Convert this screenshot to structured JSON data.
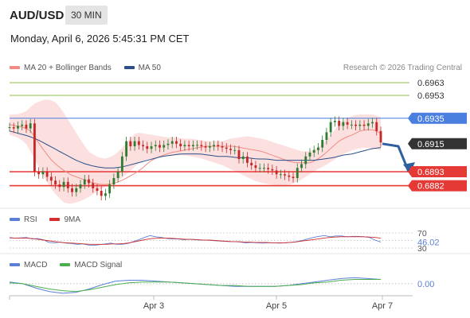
{
  "header": {
    "pair": "AUD/USD",
    "timeframe": "30 MIN",
    "datetime": "Monday, April 6, 2026 5:45:31 PM CET"
  },
  "legends": {
    "price": [
      {
        "label": "MA 20 + Bollinger Bands",
        "color": "#f28b82"
      },
      {
        "label": "MA 50",
        "color": "#2b4f86"
      }
    ],
    "rsi": [
      {
        "label": "RSI",
        "color": "#5b7fd6"
      },
      {
        "label": "9MA",
        "color": "#d32f2f"
      }
    ],
    "macd": [
      {
        "label": "MACD",
        "color": "#5b7fd6"
      },
      {
        "label": "MACD Signal",
        "color": "#4caf50"
      }
    ]
  },
  "copyright": "Research © 2026 Trading Central",
  "colors": {
    "up": "#2e7d32",
    "down": "#c62828",
    "resistance": "#8bc34a",
    "pivot": "#4a7fe0",
    "support": "#e53935",
    "current": "#333333",
    "arrow": "#2e5f9e",
    "bollinger_fill": "#fbd5d5"
  },
  "chart_data": [
    {
      "type": "candlestick",
      "panel": "price",
      "ylim": [
        0.6868,
        0.6968
      ],
      "x_tick_labels": [
        "Apr 3",
        "Apr 5",
        "Apr 7"
      ],
      "levels": [
        {
          "value": 0.6963,
          "label": "0.6963",
          "kind": "resistance"
        },
        {
          "value": 0.6953,
          "label": "0.6953",
          "kind": "resistance"
        },
        {
          "value": 0.6935,
          "label": "0.6935",
          "kind": "pivot"
        },
        {
          "value": 0.6915,
          "label": "0.6915",
          "kind": "current"
        },
        {
          "value": 0.6893,
          "label": "0.6893",
          "kind": "support"
        },
        {
          "value": 0.6882,
          "label": "0.6882",
          "kind": "support"
        }
      ],
      "close_series": [
        0.6928,
        0.6927,
        0.6929,
        0.693,
        0.6927,
        0.6931,
        0.6893,
        0.6891,
        0.6893,
        0.6889,
        0.6886,
        0.6883,
        0.6881,
        0.6885,
        0.688,
        0.6877,
        0.688,
        0.6883,
        0.6887,
        0.6884,
        0.688,
        0.6878,
        0.6874,
        0.6876,
        0.6883,
        0.6888,
        0.6893,
        0.6905,
        0.6917,
        0.6913,
        0.6917,
        0.6914,
        0.6913,
        0.6911,
        0.6913,
        0.6914,
        0.6912,
        0.6914,
        0.6915,
        0.6917,
        0.6915,
        0.6913,
        0.6914,
        0.6913,
        0.6914,
        0.6914,
        0.6913,
        0.6912,
        0.6913,
        0.6914,
        0.6913,
        0.6912,
        0.6911,
        0.691,
        0.691,
        0.6903,
        0.6905,
        0.69,
        0.6898,
        0.6896,
        0.6896,
        0.6896,
        0.6895,
        0.6894,
        0.6891,
        0.6891,
        0.689,
        0.6889,
        0.6888,
        0.6896,
        0.6899,
        0.6905,
        0.6908,
        0.691,
        0.6912,
        0.6918,
        0.6924,
        0.6932,
        0.6933,
        0.6929,
        0.6932,
        0.693,
        0.693,
        0.6929,
        0.693,
        0.6929,
        0.6931,
        0.6932,
        0.6925,
        0.6916
      ],
      "ma20_series": [
        0.693,
        0.6929,
        0.6928,
        0.6925,
        0.6917,
        0.6909,
        0.6902,
        0.6897,
        0.6893,
        0.689,
        0.6888,
        0.6886,
        0.6884,
        0.6883,
        0.6883,
        0.6884,
        0.6886,
        0.6889,
        0.6892,
        0.6896,
        0.6901,
        0.6904,
        0.6906,
        0.6908,
        0.6909,
        0.691,
        0.6911,
        0.6912,
        0.6913,
        0.6913,
        0.6913,
        0.6913,
        0.6913,
        0.6912,
        0.6911,
        0.691,
        0.6909,
        0.6907,
        0.6905,
        0.6903,
        0.6901,
        0.69,
        0.69,
        0.69,
        0.6903,
        0.6907,
        0.6912,
        0.6917,
        0.692,
        0.6922,
        0.6925,
        0.6926,
        0.6926,
        0.6923
      ],
      "bollinger_upper": [
        0.6938,
        0.6938,
        0.694,
        0.6946,
        0.6949,
        0.695,
        0.6947,
        0.6938,
        0.6928,
        0.6918,
        0.6909,
        0.6905,
        0.6903,
        0.6905,
        0.691,
        0.6917,
        0.6924,
        0.6923,
        0.6922,
        0.6921,
        0.692,
        0.692,
        0.6919,
        0.6919,
        0.6918,
        0.6917,
        0.6917,
        0.6917,
        0.6919,
        0.692,
        0.6921,
        0.692,
        0.6919,
        0.6917,
        0.6915,
        0.6913,
        0.6911,
        0.6909,
        0.6909,
        0.6912,
        0.6917,
        0.6925,
        0.6932,
        0.6936,
        0.6938,
        0.6938,
        0.6938,
        0.6936
      ],
      "bollinger_lower": [
        0.6922,
        0.692,
        0.6916,
        0.6905,
        0.6893,
        0.6882,
        0.6874,
        0.6868,
        0.6868,
        0.687,
        0.6873,
        0.6877,
        0.6881,
        0.6884,
        0.6887,
        0.6892,
        0.6898,
        0.6902,
        0.6903,
        0.6905,
        0.6906,
        0.6906,
        0.6906,
        0.6905,
        0.6904,
        0.6902,
        0.69,
        0.6898,
        0.6895,
        0.6892,
        0.6889,
        0.6886,
        0.6884,
        0.6883,
        0.6882,
        0.6882,
        0.6884,
        0.6887,
        0.6891,
        0.6895,
        0.6898,
        0.6902,
        0.6906,
        0.6909,
        0.6911,
        0.6912,
        0.6911,
        0.691
      ],
      "ma50_series": [
        0.6925,
        0.6923,
        0.6921,
        0.6918,
        0.6914,
        0.691,
        0.6906,
        0.6902,
        0.6899,
        0.6897,
        0.6896,
        0.6896,
        0.6897,
        0.6899,
        0.6901,
        0.6903,
        0.6905,
        0.6906,
        0.6907,
        0.6907,
        0.6907,
        0.6906,
        0.6905,
        0.6905,
        0.6904,
        0.6904,
        0.6903,
        0.6903,
        0.6902,
        0.6902,
        0.6902,
        0.6902,
        0.6902,
        0.6903,
        0.6904,
        0.6906,
        0.6907,
        0.6909,
        0.6911,
        0.6912
      ],
      "projection": [
        0.6915,
        0.6913,
        0.6893
      ]
    },
    {
      "type": "line",
      "panel": "rsi",
      "ylim": [
        30,
        70
      ],
      "levels": [
        70,
        50,
        30
      ],
      "level_labels": [
        "70",
        "30"
      ],
      "current_value": 46.02,
      "current_label": "46.02",
      "series": [
        {
          "name": "RSI",
          "values": [
            58,
            56,
            57,
            58,
            54,
            55,
            52,
            45,
            44,
            46,
            43,
            42,
            40,
            41,
            38,
            37,
            39,
            41,
            43,
            40,
            40,
            42,
            47,
            52,
            58,
            63,
            60,
            58,
            55,
            54,
            54,
            52,
            53,
            52,
            51,
            51,
            50,
            49,
            48,
            47,
            47,
            46,
            44,
            45,
            44,
            43,
            44,
            44,
            43,
            44,
            45,
            47,
            50,
            54,
            58,
            61,
            63,
            60,
            62,
            62,
            60,
            61,
            61,
            60,
            58,
            51,
            46
          ]
        },
        {
          "name": "9MA",
          "values": [
            57,
            56,
            56,
            56,
            55,
            53,
            51,
            49,
            47,
            45,
            44,
            43,
            42,
            41,
            40,
            40,
            40,
            40,
            41,
            41,
            42,
            44,
            47,
            50,
            53,
            55,
            56,
            56,
            56,
            55,
            54,
            53,
            53,
            52,
            51,
            51,
            50,
            49,
            48,
            47,
            47,
            46,
            46,
            45,
            45,
            45,
            44,
            44,
            44,
            45,
            46,
            48,
            50,
            52,
            54,
            56,
            58,
            59,
            60,
            60,
            60,
            60,
            60,
            59,
            58,
            56
          ]
        }
      ]
    },
    {
      "type": "line",
      "panel": "macd",
      "ylim": [
        -0.0012,
        0.001
      ],
      "current_value": 0.0,
      "current_label": "0.00",
      "series": [
        {
          "name": "MACD",
          "values": [
            0.0002,
            0.0,
            -0.0005,
            -0.0009,
            -0.0011,
            -0.001,
            -0.0006,
            -0.0001,
            0.0003,
            0.0004,
            0.0004,
            0.0003,
            0.0002,
            0.0001,
            0.0,
            -0.0001,
            -0.0002,
            -0.0003,
            -0.0003,
            -0.0003,
            -0.0003,
            -0.0002,
            0.0,
            0.0002,
            0.0004,
            0.0006,
            0.0007,
            0.0006,
            0.0005
          ]
        },
        {
          "name": "MACD Signal",
          "values": [
            0.0001,
            0.0,
            -0.0003,
            -0.0006,
            -0.0008,
            -0.0009,
            -0.0007,
            -0.0004,
            -0.0001,
            0.0001,
            0.0002,
            0.0002,
            0.0002,
            0.0001,
            0.0,
            -0.0001,
            -0.0002,
            -0.0002,
            -0.0003,
            -0.0003,
            -0.0003,
            -0.0002,
            -0.0001,
            0.0001,
            0.0002,
            0.0004,
            0.0005,
            0.0005,
            0.0005
          ]
        }
      ]
    }
  ]
}
